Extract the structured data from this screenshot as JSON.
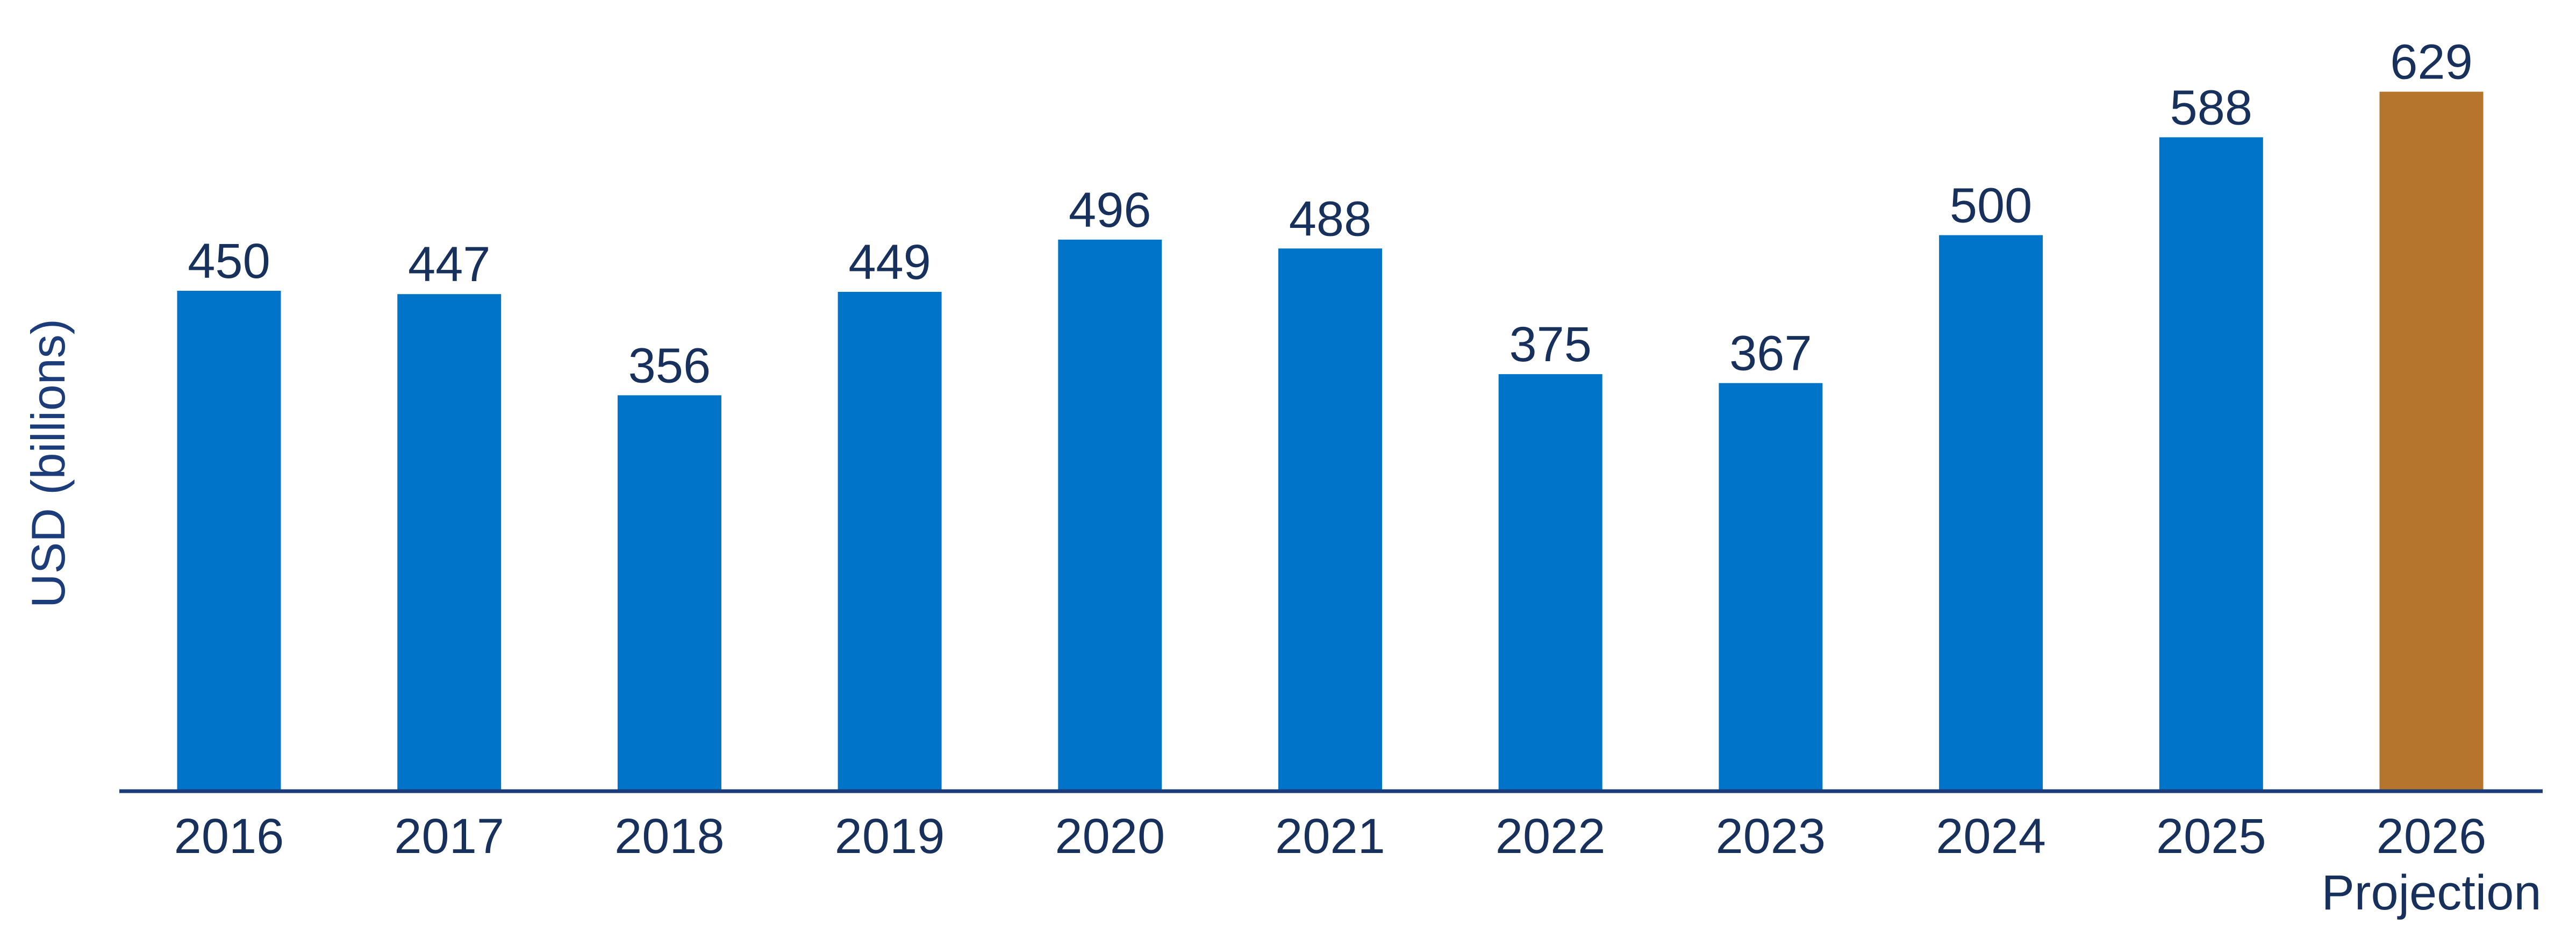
{
  "chart_data": {
    "type": "bar",
    "title": "",
    "xlabel": "",
    "ylabel": "USD (billions)",
    "categories": [
      "2016",
      "2017",
      "2018",
      "2019",
      "2020",
      "2021",
      "2022",
      "2023",
      "2024",
      "2025",
      "2026"
    ],
    "category_sublabels": [
      "",
      "",
      "",
      "",
      "",
      "",
      "",
      "",
      "",
      "",
      "Projection"
    ],
    "values": [
      450,
      447,
      356,
      449,
      496,
      488,
      375,
      367,
      500,
      588,
      629
    ],
    "ylim": [
      0,
      700
    ],
    "grid": false,
    "legend": "none",
    "colors": {
      "actual": "#0074c8",
      "projection": "#b5752d",
      "axis": "#1c3d7a",
      "text": "#17305c"
    },
    "projection_index": 10
  }
}
